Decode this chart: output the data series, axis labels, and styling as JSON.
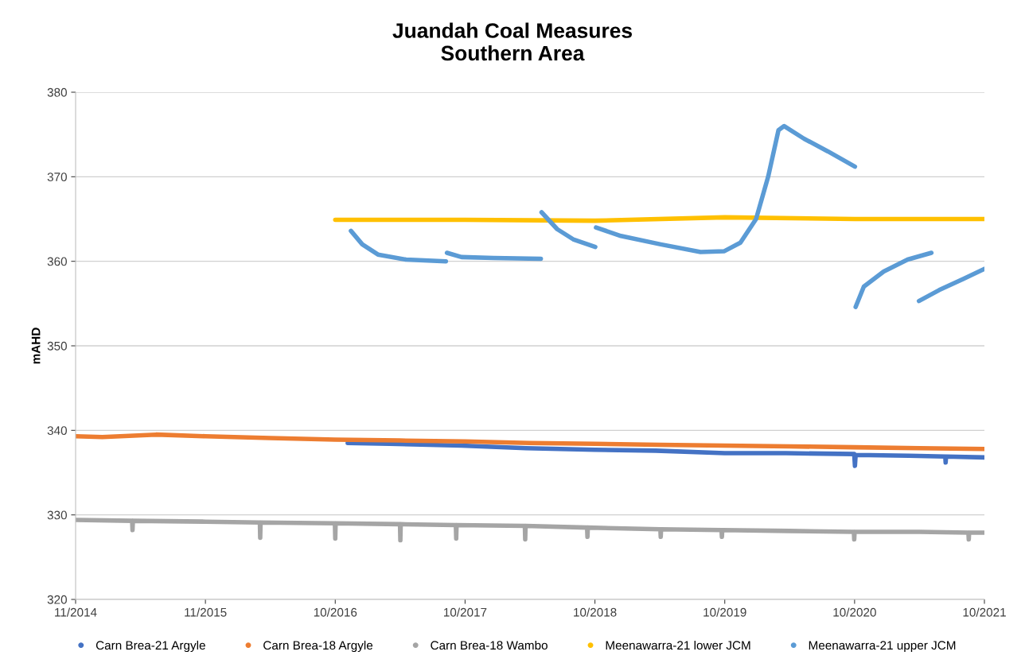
{
  "chart_data": {
    "type": "line",
    "title": "Juandah Coal Measures\nSouthern Area",
    "ylabel": "mAHD",
    "ylim": [
      320,
      380
    ],
    "yticks": [
      320,
      330,
      340,
      350,
      360,
      370,
      380
    ],
    "xlim": [
      "2014-11-01",
      "2021-10-30"
    ],
    "xticks": [
      {
        "value": "2014-11-01",
        "label": "11/2014"
      },
      {
        "value": "2015-11-01",
        "label": "11/2015"
      },
      {
        "value": "2016-10-31",
        "label": "10/2016"
      },
      {
        "value": "2017-10-31",
        "label": "10/2017"
      },
      {
        "value": "2018-10-31",
        "label": "10/2018"
      },
      {
        "value": "2019-10-31",
        "label": "10/2019"
      },
      {
        "value": "2020-10-30",
        "label": "10/2020"
      },
      {
        "value": "2021-10-30",
        "label": "10/2021"
      }
    ],
    "grid": "y",
    "legend": "bottom",
    "series": [
      {
        "name": "Carn Brea-21 Argyle",
        "color": "#4472c4",
        "x": [
          "2016-12-05",
          "2017-04-01",
          "2017-10-21",
          "2018-04-20",
          "2018-10-31",
          "2019-04-20",
          "2019-10-31",
          "2020-04-20",
          "2020-10-29",
          "2020-10-31",
          "2020-11-02",
          "2021-04-01",
          "2021-07-12",
          "2021-07-13",
          "2021-07-14",
          "2021-10-30"
        ],
        "values": [
          338.5,
          338.4,
          338.2,
          337.9,
          337.7,
          337.6,
          337.3,
          337.3,
          337.2,
          335.8,
          337.1,
          337.0,
          336.9,
          336.2,
          336.9,
          336.8
        ]
      },
      {
        "name": "Carn Brea-18 Argyle",
        "color": "#ed7d31",
        "x": [
          "2014-11-01",
          "2015-01-15",
          "2015-06-15",
          "2015-11-01",
          "2016-05-01",
          "2016-10-31",
          "2017-04-30",
          "2017-10-31",
          "2018-04-30",
          "2018-10-31",
          "2019-04-30",
          "2019-10-31",
          "2020-04-30",
          "2020-10-31",
          "2021-04-30",
          "2021-10-30"
        ],
        "values": [
          339.3,
          339.2,
          339.5,
          339.3,
          339.1,
          338.9,
          338.8,
          338.7,
          338.5,
          338.4,
          338.3,
          338.2,
          338.1,
          338.0,
          337.9,
          337.8
        ]
      },
      {
        "name": "Carn Brea-18 Wambo",
        "color": "#a5a5a5",
        "x": [
          "2014-11-01",
          "2015-04-09",
          "2015-04-10",
          "2015-04-11",
          "2015-11-01",
          "2016-04-02",
          "2016-04-03",
          "2016-04-04",
          "2016-10-30",
          "2016-10-31",
          "2016-11-01",
          "2017-05-01",
          "2017-05-02",
          "2017-05-03",
          "2017-10-05",
          "2017-10-06",
          "2017-10-07",
          "2018-04-17",
          "2018-04-18",
          "2018-04-19",
          "2018-10-09",
          "2018-10-10",
          "2018-10-11",
          "2019-05-03",
          "2019-05-04",
          "2019-05-05",
          "2019-10-22",
          "2019-10-23",
          "2019-10-24",
          "2020-04-30",
          "2020-10-28",
          "2020-10-29",
          "2020-10-30",
          "2021-04-30",
          "2021-09-15",
          "2021-09-16",
          "2021-09-17",
          "2021-10-30"
        ],
        "values": [
          329.4,
          329.3,
          328.2,
          329.3,
          329.2,
          329.1,
          327.3,
          329.1,
          329.0,
          327.2,
          329.0,
          328.9,
          327.0,
          328.9,
          328.8,
          327.2,
          328.8,
          328.7,
          327.1,
          328.7,
          328.5,
          327.4,
          328.5,
          328.3,
          327.4,
          328.3,
          328.2,
          327.4,
          328.2,
          328.1,
          328.0,
          327.1,
          328.0,
          328.0,
          327.9,
          327.1,
          327.9,
          327.9
        ]
      },
      {
        "name": "Meenawarra-21 lower JCM",
        "color": "#ffc000",
        "x": [
          "2016-10-31",
          "2017-10-31",
          "2018-10-31",
          "2019-10-31",
          "2020-10-31",
          "2021-10-30"
        ],
        "values": [
          364.9,
          364.9,
          364.8,
          365.2,
          365.0,
          365.0
        ]
      },
      {
        "name": "Meenawarra-21 upper JCM",
        "color": "#5b9bd5",
        "x": [
          "2016-12-14",
          "2017-01-15",
          "2017-02-28",
          "2017-05-18",
          "2017-09-07",
          "2017-09-08",
          "2017-09-10",
          "2017-10-21",
          "2018-01-19",
          "2018-06-01",
          "2018-06-02",
          "2018-06-03",
          "2018-07-17",
          "2018-08-31",
          "2018-11-01",
          "2018-11-02",
          "2018-11-03",
          "2019-01-12",
          "2019-05-04",
          "2019-08-24",
          "2019-10-30",
          "2019-12-14",
          "2020-01-27",
          "2020-03-01",
          "2020-03-30",
          "2020-04-15",
          "2020-06-10",
          "2020-08-16",
          "2020-10-31",
          "2020-11-01",
          "2020-11-02",
          "2020-11-25",
          "2021-01-20",
          "2021-03-28",
          "2021-06-03"
        ],
        "values": [
          363.6,
          362.0,
          360.8,
          360.2,
          360.0,
          null,
          361.0,
          360.5,
          360.4,
          360.3,
          null,
          365.8,
          363.8,
          362.6,
          361.7,
          null,
          364.0,
          363.0,
          362.0,
          361.1,
          361.2,
          362.2,
          365.0,
          370.0,
          375.5,
          376.0,
          374.5,
          373.0,
          371.2,
          null,
          354.6,
          357.0,
          358.8,
          360.2,
          361.0
        ]
      },
      {
        "color": "#5b9bd5",
        "x": [
          "2021-04-29",
          "2021-06-25",
          "2021-08-31",
          "2021-10-30"
        ],
        "values": [
          355.3,
          356.6,
          357.9,
          359.1
        ]
      }
    ]
  }
}
